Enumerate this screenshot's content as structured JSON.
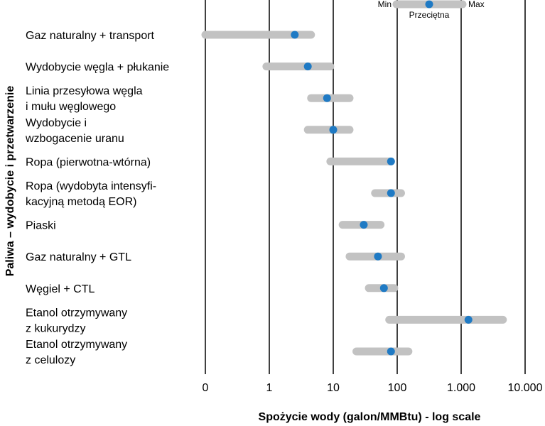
{
  "chart_data": {
    "type": "range",
    "title": "",
    "xlabel": "Spożycie wody (galon/MMBtu) - log scale",
    "ylabel": "Paliwa – wydobycie i przetwarzenie",
    "x_scale": "log",
    "xlim": [
      0.1,
      10000
    ],
    "grid": true,
    "x_ticks": [
      {
        "value": 0.1,
        "label": "0"
      },
      {
        "value": 1,
        "label": "1"
      },
      {
        "value": 10,
        "label": "10"
      },
      {
        "value": 100,
        "label": "100"
      },
      {
        "value": 1000,
        "label": "1.000"
      },
      {
        "value": 10000,
        "label": "10.000"
      }
    ],
    "legend": {
      "min": "Min",
      "max": "Max",
      "avg": "Przeciętna",
      "placement": "top-right"
    },
    "colors": {
      "range": "#c2c2c2",
      "avg": "#1f7ac4",
      "grid": "#000000"
    },
    "categories": [
      {
        "label": [
          "Gaz naturalny + transport"
        ],
        "min": 0.1,
        "max": 4.5,
        "avg": 2.5
      },
      {
        "label": [
          "Wydobycie węgla + płukanie"
        ],
        "min": 0.9,
        "max": 9,
        "avg": 4
      },
      {
        "label": [
          "Linia przesyłowa węgla",
          "i mułu węglowego"
        ],
        "min": 4.5,
        "max": 18,
        "avg": 8
      },
      {
        "label": [
          "Wydobycie i",
          "wzbogacenie uranu"
        ],
        "min": 4,
        "max": 18,
        "avg": 10
      },
      {
        "label": [
          "Ropa (pierwotna-wtórna)"
        ],
        "min": 9,
        "max": 80,
        "avg": 80
      },
      {
        "label": [
          "Ropa (wydobyta intensyfi-",
          "kacyjną metodą EOR)"
        ],
        "min": 45,
        "max": 115,
        "avg": 80
      },
      {
        "label": [
          "Piaski"
        ],
        "min": 14,
        "max": 55,
        "avg": 30
      },
      {
        "label": [
          "Gaz naturalny + GTL"
        ],
        "min": 18,
        "max": 115,
        "avg": 50
      },
      {
        "label": [
          "Węgiel + CTL"
        ],
        "min": 36,
        "max": 90,
        "avg": 62
      },
      {
        "label": [
          "Etanol otrzymywany",
          "z kukurydzy"
        ],
        "min": 75,
        "max": 4500,
        "avg": 1300
      },
      {
        "label": [
          "Etanol otrzymywany",
          "z celulozy"
        ],
        "min": 23,
        "max": 150,
        "avg": 80
      }
    ]
  }
}
